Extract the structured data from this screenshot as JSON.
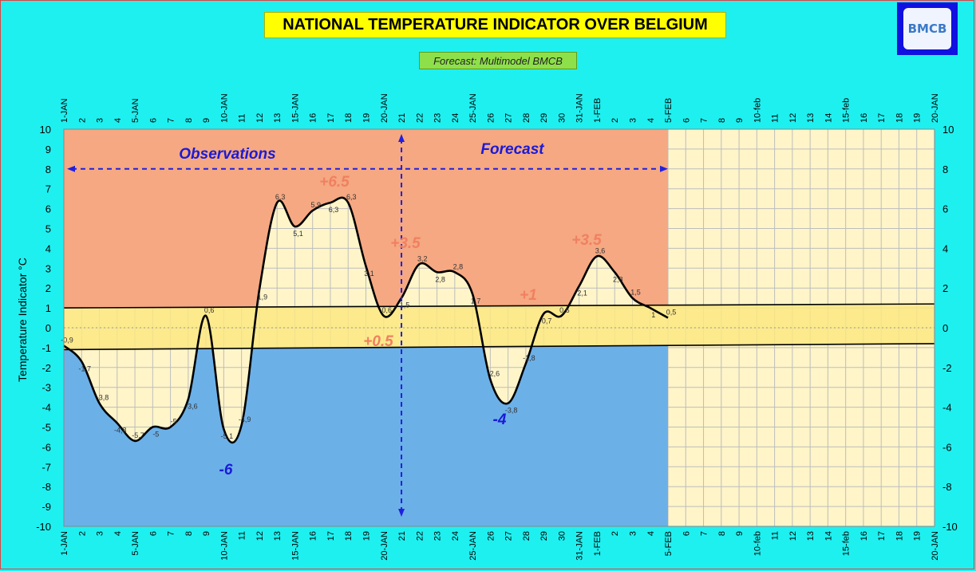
{
  "title": "NATIONAL TEMPERATURE INDICATOR OVER  BELGIUM",
  "subtitle": "Forecast:  Multimodel BMCB",
  "logo_text": "BMCB",
  "chart_data": {
    "type": "line",
    "ylabel": "Temperature Indicator   °C",
    "ylim": [
      -10,
      10
    ],
    "yticks": [
      -10,
      -9,
      -8,
      -7,
      -6,
      -5,
      -4,
      -3,
      -2,
      -1,
      0,
      1,
      2,
      3,
      4,
      5,
      6,
      7,
      8,
      9,
      10
    ],
    "yticks_right": [
      -10,
      -8,
      -6,
      -4,
      -2,
      0,
      2,
      4,
      6,
      8,
      10
    ],
    "x_labels": [
      "1-JAN",
      "2",
      "3",
      "4",
      "5-JAN",
      "6",
      "7",
      "8",
      "9",
      "10-JAN",
      "11",
      "12",
      "13",
      "15-JAN",
      "16",
      "17",
      "18",
      "19",
      "20-JAN",
      "21",
      "22",
      "23",
      "24",
      "25-JAN",
      "26",
      "27",
      "28",
      "29",
      "30",
      "31-JAN",
      "1-FEB",
      "2",
      "3",
      "4",
      "5-FEB",
      "6",
      "7",
      "8",
      "9",
      "10-feb",
      "11",
      "12",
      "13",
      "14",
      "15-feb",
      "16",
      "17",
      "18",
      "19",
      "20-JAN"
    ],
    "series": [
      {
        "values": [
          -0.9,
          -1.7,
          -3.8,
          -4.8,
          -5.7,
          -5,
          -5,
          -3.6,
          0.6,
          -5.1,
          -4.9,
          1.9,
          6.3,
          5.1,
          5.9,
          6.3,
          6.3,
          3.1,
          0.6,
          1.5,
          3.2,
          2.8,
          2.8,
          1.7,
          -2.6,
          -3.8,
          -1.8,
          0.7,
          0.6,
          2.1,
          3.6,
          2.8,
          1.5,
          1,
          0.5
        ],
        "labels": [
          "-0,9",
          "-1,7",
          "-3,8",
          "-4,8",
          "-5,7",
          "-5",
          "-5",
          "-3,6",
          "0,6",
          "-5,1",
          "-4,9",
          "1,9",
          "6,3",
          "5,1",
          "5,9",
          "6,3",
          "6,3",
          "3,1",
          "0,6",
          "1,5",
          "3,2",
          "2,8",
          "2,8",
          "1,7",
          "-2,6",
          "-3,8",
          "-1,8",
          "0,7",
          "0,6",
          "2,1",
          "3,6",
          "2,8",
          "1,5",
          "1",
          "0,5"
        ]
      }
    ],
    "band": {
      "upper_start": 1.0,
      "upper_end": 1.2,
      "lower_start": -1.1,
      "lower_end": -0.8,
      "mid": 0.2
    },
    "annotations": [
      {
        "text": "Observations",
        "color": "#1a1ad8"
      },
      {
        "text": "Forecast",
        "color": "#1a1ad8"
      },
      {
        "text": "+6.5",
        "color": "#f08060"
      },
      {
        "text": "+3.5",
        "color": "#f08060"
      },
      {
        "text": "+3.5",
        "color": "#f08060"
      },
      {
        "text": "+1",
        "color": "#f08060"
      },
      {
        "text": "+0.5",
        "color": "#f08060"
      },
      {
        "text": "-6",
        "color": "#1a1ad8"
      },
      {
        "text": "-4",
        "color": "#1a1ad8"
      }
    ],
    "colors": {
      "plot_bg": "#fff5c8",
      "grid": "#bdbdbd",
      "positive_fill": "#f5a882",
      "negative_fill": "#6cb0e8",
      "band_fill": "#fce882",
      "curve": "#000000",
      "arrow": "#2020e0"
    }
  }
}
